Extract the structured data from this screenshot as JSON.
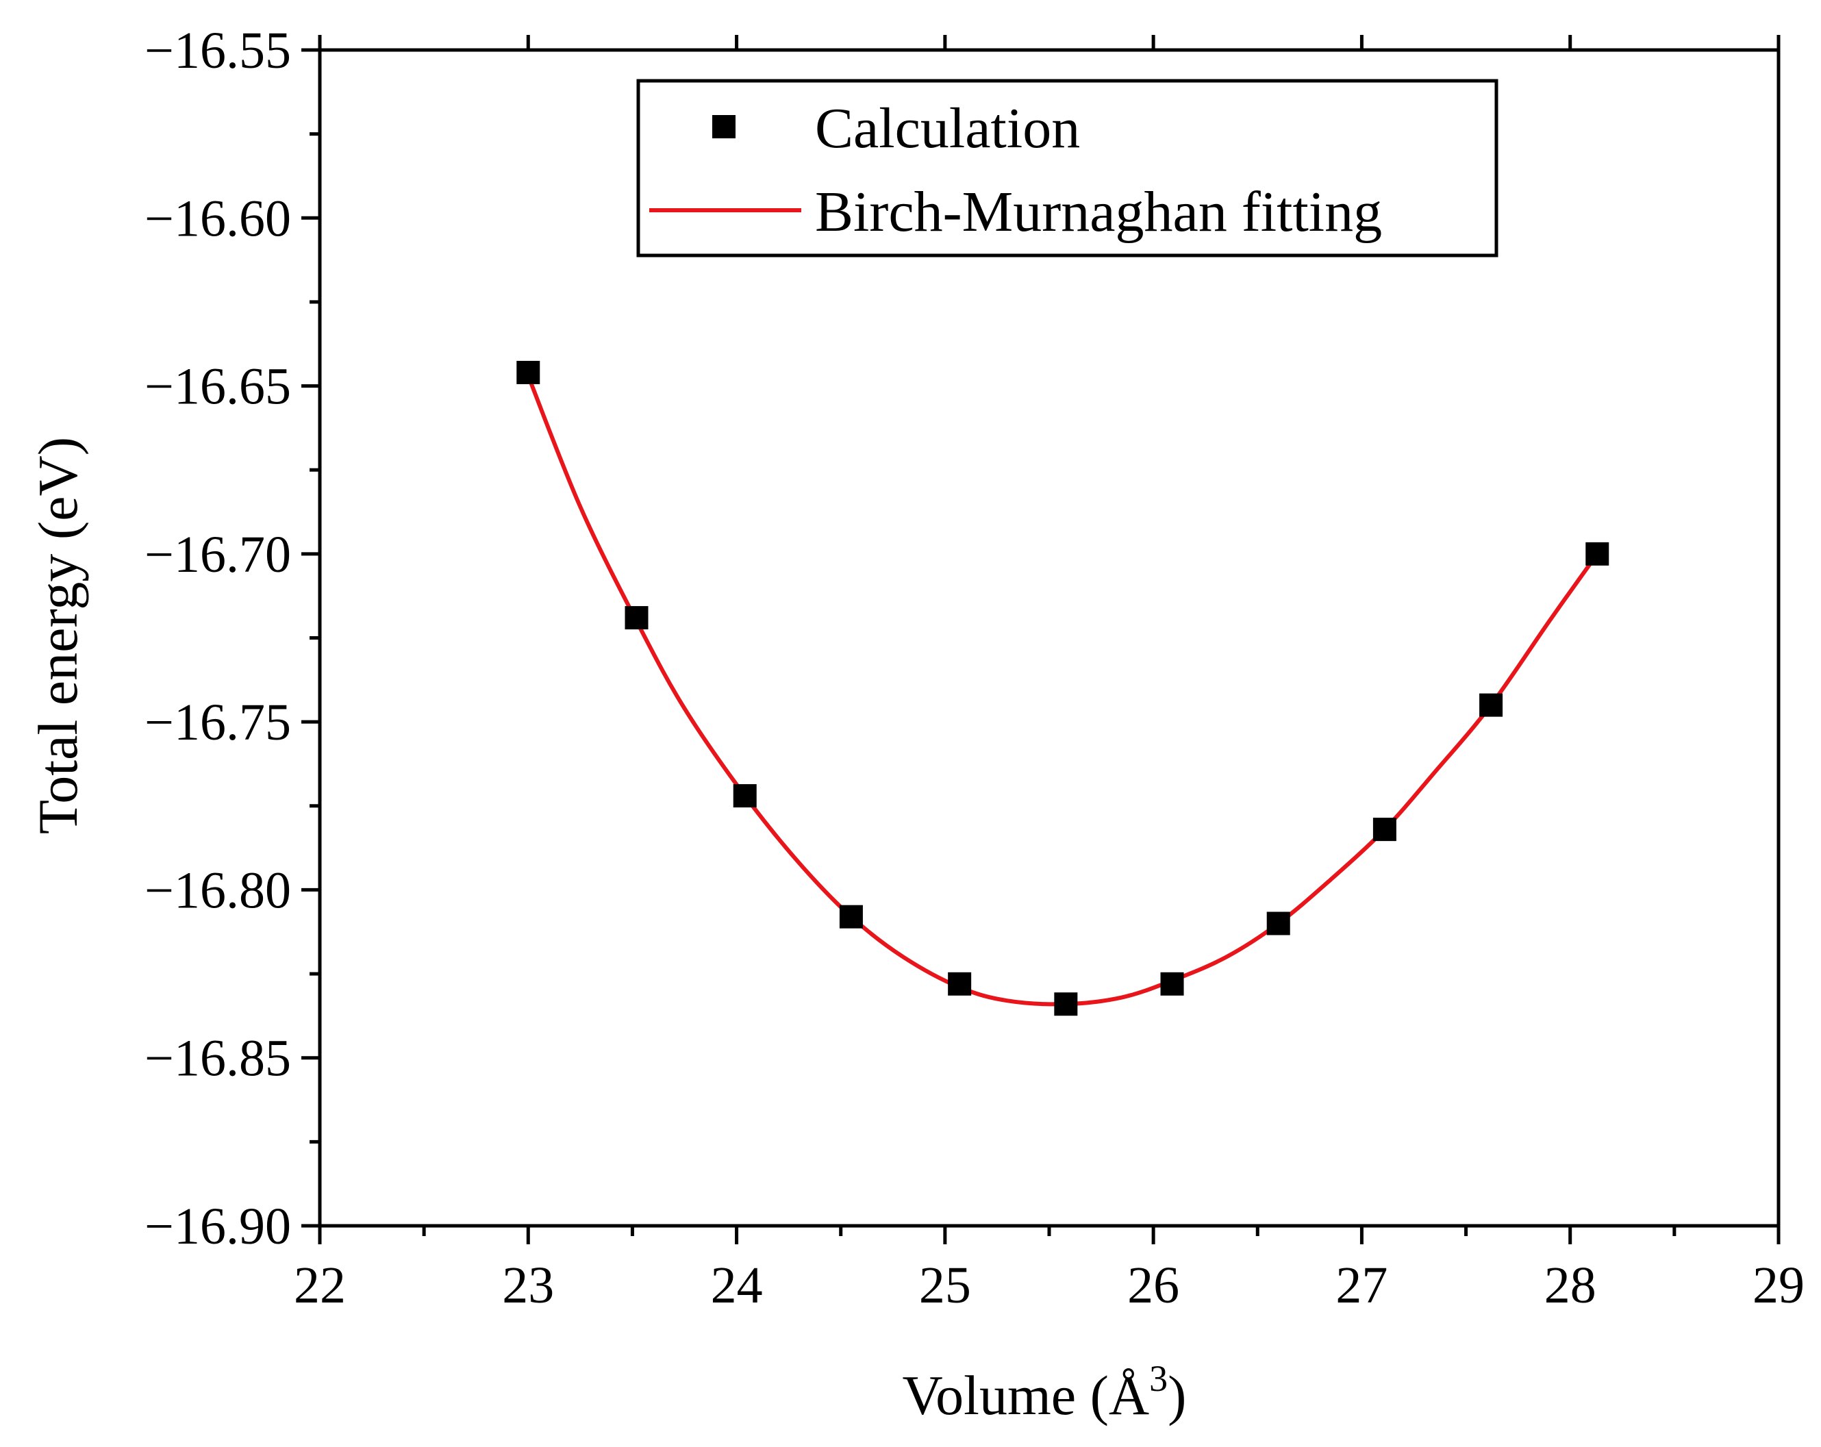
{
  "chart_data": {
    "type": "scatter",
    "title": "",
    "xlabel_main": "Volume (Å",
    "xlabel_sup": "3",
    "xlabel_close": ")",
    "ylabel": "Total energy (eV)",
    "xlim": [
      22,
      29
    ],
    "ylim": [
      -16.9,
      -16.55
    ],
    "x_ticks": [
      22,
      23,
      24,
      25,
      26,
      27,
      28,
      29
    ],
    "x_tick_labels": [
      "22",
      "23",
      "24",
      "25",
      "26",
      "27",
      "28",
      "29"
    ],
    "y_ticks": [
      -16.55,
      -16.6,
      -16.65,
      -16.7,
      -16.75,
      -16.8,
      -16.85,
      -16.9
    ],
    "y_tick_labels": [
      "−16.55",
      "−16.60",
      "−16.65",
      "−16.70",
      "−16.75",
      "−16.80",
      "−16.85",
      "−16.90"
    ],
    "grid": false,
    "legend_position": "top-center",
    "series": [
      {
        "name": "Calculation",
        "kind": "markers",
        "marker": "square",
        "color": "#000000",
        "x": [
          23.0,
          23.52,
          24.04,
          24.55,
          25.07,
          25.58,
          26.09,
          26.6,
          27.11,
          27.62,
          28.13
        ],
        "y": [
          -16.646,
          -16.719,
          -16.772,
          -16.808,
          -16.828,
          -16.834,
          -16.828,
          -16.81,
          -16.782,
          -16.745,
          -16.7
        ]
      },
      {
        "name": "Birch-Murnaghan fitting",
        "kind": "line",
        "color": "#e8151b",
        "x": [
          23.0,
          23.25,
          23.52,
          23.75,
          24.04,
          24.3,
          24.55,
          24.8,
          25.07,
          25.3,
          25.58,
          25.85,
          26.09,
          26.35,
          26.6,
          26.85,
          27.11,
          27.35,
          27.62,
          27.9,
          28.13
        ],
        "y": [
          -16.647,
          -16.686,
          -16.72,
          -16.746,
          -16.772,
          -16.792,
          -16.808,
          -16.82,
          -16.829,
          -16.833,
          -16.834,
          -16.832,
          -16.827,
          -16.82,
          -16.81,
          -16.797,
          -16.782,
          -16.765,
          -16.745,
          -16.72,
          -16.7
        ]
      }
    ]
  }
}
